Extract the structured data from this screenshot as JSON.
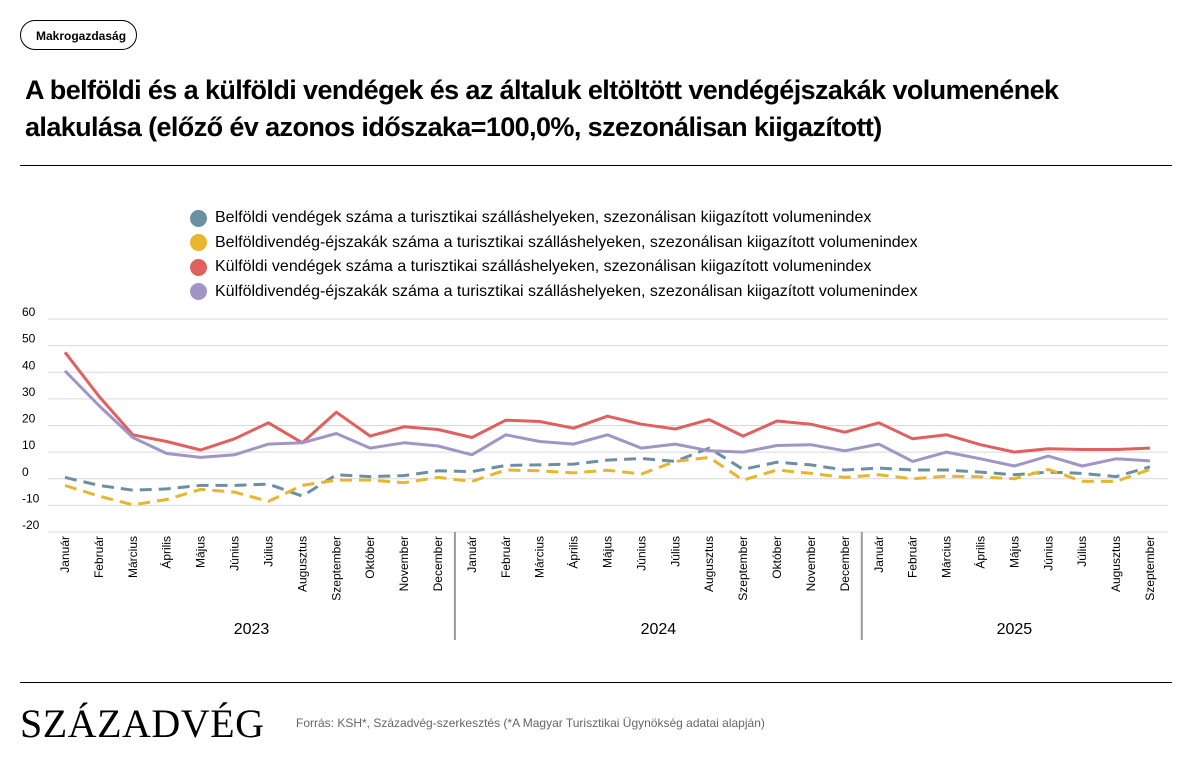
{
  "header": {
    "tag": "Makrogazdaság",
    "title": "A belföldi és a külföldi vendégek és az általuk eltöltött vendégéjszakák volumenének alakulása (előző év azonos időszaka=100,0%, szezonálisan kiigazított)"
  },
  "footer": {
    "logo": "SZÁZADVÉG",
    "source": "Forrás: KSH*, Századvég-szerkesztés (*A Magyar Turisztikai Ügynökség adatai alapján)"
  },
  "chart_data": {
    "type": "line",
    "title": "",
    "xlabel": "",
    "ylabel": "",
    "ylim": [
      -20,
      60
    ],
    "yticks": [
      60,
      50,
      40,
      30,
      20,
      10,
      0,
      -10,
      -20
    ],
    "grid": true,
    "legend_position": "top-center",
    "categories": [
      "Január",
      "Február",
      "Március",
      "Április",
      "Május",
      "Június",
      "Július",
      "Augusztus",
      "Szeptember",
      "Október",
      "November",
      "December",
      "Január",
      "Február",
      "Március",
      "Április",
      "Május",
      "Június",
      "Július",
      "Augusztus",
      "Szeptember",
      "Október",
      "November",
      "December",
      "Január",
      "Február",
      "Március",
      "Április",
      "Május",
      "Június",
      "Július",
      "Augusztus",
      "Szeptember"
    ],
    "year_groups": [
      {
        "label": "2023",
        "count": 12
      },
      {
        "label": "2024",
        "count": 12
      },
      {
        "label": "2025",
        "count": 9
      }
    ],
    "series": [
      {
        "name": "Belföldi vendégek száma a turisztikai szálláshelyeken, szezonálisan kiigazított volumenindex",
        "color": "#6b8fa3",
        "dashed": true,
        "values": [
          0.5,
          -2.5,
          -4.3,
          -3.8,
          -2.5,
          -2.5,
          -2,
          -6.5,
          1.5,
          0.8,
          1.2,
          3,
          2.7,
          5,
          5.2,
          5.5,
          7,
          7.6,
          6.5,
          11.5,
          3.5,
          6.2,
          5.2,
          3.3,
          4,
          3.3,
          3.3,
          2.5,
          1.5,
          2.5,
          2,
          0.8,
          4.5
        ]
      },
      {
        "name": "Belföldivendég-éjszakák száma a turisztikai szálláshelyeken, szezonálisan kiigazított volumenindex",
        "color": "#e8b52e",
        "dashed": true,
        "values": [
          -2.5,
          -6.5,
          -9.8,
          -7.8,
          -4,
          -5,
          -8.5,
          -2.5,
          -0.5,
          -0.5,
          -1.5,
          0.5,
          -1,
          3.3,
          3,
          2.2,
          3.2,
          1.8,
          6.5,
          8,
          -0.5,
          3.3,
          2,
          0.5,
          1.5,
          0,
          1,
          0.7,
          0,
          3.5,
          -1,
          -1,
          3.5
        ]
      },
      {
        "name": "Külföldi vendégek száma a turisztikai szálláshelyeken, szezonálisan kiigazított volumenindex",
        "color": "#e0605e",
        "dashed": false,
        "values": [
          47.5,
          31,
          16.5,
          14,
          10.8,
          15,
          21,
          13.5,
          25,
          16,
          19.5,
          18.5,
          15.5,
          22,
          21.5,
          19,
          23.5,
          20.5,
          18.7,
          22.2,
          16,
          21.7,
          20.5,
          17.5,
          21,
          15,
          16.5,
          12.8,
          10,
          11.3,
          11,
          11,
          11.5
        ]
      },
      {
        "name": "Külföldivendég-éjszakák száma a turisztikai szálláshelyeken, szezonálisan kiigazított volumenindex",
        "color": "#a095c4",
        "dashed": false,
        "values": [
          40.5,
          27.5,
          15.5,
          9.5,
          8,
          9,
          13,
          13.5,
          17,
          11.5,
          13.5,
          12.3,
          9,
          16.5,
          14,
          13,
          16.5,
          11.5,
          13,
          10.5,
          10,
          12.5,
          12.8,
          10.5,
          13,
          6.5,
          10,
          7.5,
          4.8,
          8.5,
          4.8,
          7.5,
          6.7
        ]
      }
    ]
  }
}
